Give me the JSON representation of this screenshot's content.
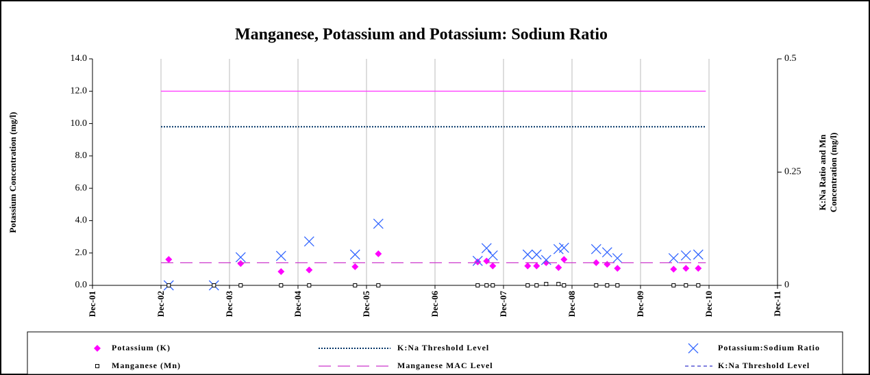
{
  "chart_data": {
    "type": "scatter",
    "title": "Manganese, Potassium and Potassium: Sodium Ratio",
    "y_label": "Potassium Concentration (mg/l)",
    "y2_label": "K:Na Ratio and Mn Concentration (mg/l)",
    "xlim": [
      2001.917,
      2011.917
    ],
    "xticks": [
      {
        "value": 2001.917,
        "label": "Dec-01"
      },
      {
        "value": 2002.917,
        "label": "Dec-02"
      },
      {
        "value": 2003.917,
        "label": "Dec-03"
      },
      {
        "value": 2004.917,
        "label": "Dec-04"
      },
      {
        "value": 2005.917,
        "label": "Dec-05"
      },
      {
        "value": 2006.917,
        "label": "Dec-06"
      },
      {
        "value": 2007.917,
        "label": "Dec-07"
      },
      {
        "value": 2008.917,
        "label": "Dec-08"
      },
      {
        "value": 2009.917,
        "label": "Dec-09"
      },
      {
        "value": 2010.917,
        "label": "Dec-10"
      },
      {
        "value": 2011.917,
        "label": "Dec-11"
      }
    ],
    "ylim": [
      0,
      14
    ],
    "yticks": [
      {
        "value": 0,
        "label": "0.0"
      },
      {
        "value": 2,
        "label": "2.0"
      },
      {
        "value": 4,
        "label": "4.0"
      },
      {
        "value": 6,
        "label": "6.0"
      },
      {
        "value": 8,
        "label": "8.0"
      },
      {
        "value": 10,
        "label": "10.0"
      },
      {
        "value": 12,
        "label": "12.0"
      },
      {
        "value": 14,
        "label": "14.0"
      }
    ],
    "y2lim": [
      0,
      0.5
    ],
    "y2ticks": [
      0,
      0.25,
      0.5
    ],
    "grid": "vertical",
    "legend": "bottom",
    "series": [
      {
        "name": "Potassium (K)",
        "kind": "marker",
        "marker": "diamond",
        "color": "#ff00ff",
        "axis": "y",
        "x": [
          2003.03,
          2003.69,
          2004.08,
          2004.67,
          2005.08,
          2005.75,
          2006.09,
          2007.54,
          2007.67,
          2007.76,
          2008.27,
          2008.4,
          2008.54,
          2008.72,
          2008.8,
          2009.27,
          2009.43,
          2009.58,
          2010.4,
          2010.58,
          2010.76
        ],
        "values": [
          1.6,
          null,
          1.35,
          0.85,
          0.95,
          1.15,
          1.95,
          1.45,
          1.5,
          1.2,
          1.2,
          1.2,
          1.4,
          1.1,
          1.6,
          1.4,
          1.3,
          1.05,
          1.0,
          1.05,
          1.05
        ]
      },
      {
        "name": "K:Na Threshold Level",
        "kind": "line",
        "dash": "dotted",
        "color": "#003366",
        "axis": "y2",
        "x": [
          2002.917,
          2010.87
        ],
        "values": [
          0.35,
          0.35
        ]
      },
      {
        "name": "Potassium:Sodium Ratio",
        "kind": "marker",
        "marker": "cross",
        "color": "#3366ff",
        "axis": "y2",
        "x": [
          2003.03,
          2003.69,
          2004.08,
          2004.67,
          2005.08,
          2005.75,
          2006.09,
          2007.54,
          2007.67,
          2007.76,
          2008.27,
          2008.4,
          2008.54,
          2008.72,
          2008.8,
          2009.27,
          2009.43,
          2009.58,
          2010.4,
          2010.58,
          2010.76
        ],
        "values": [
          0,
          0,
          0.062,
          0.065,
          0.097,
          0.068,
          0.136,
          0.054,
          0.082,
          0.066,
          0.068,
          0.068,
          0.056,
          0.08,
          0.083,
          0.08,
          0.073,
          0.06,
          0.06,
          0.066,
          0.068
        ]
      },
      {
        "name": "Manganese (Mn)",
        "kind": "marker",
        "marker": "square",
        "color": "#000000",
        "axis": "y2",
        "x": [
          2003.03,
          2003.69,
          2004.08,
          2004.67,
          2005.08,
          2005.75,
          2006.09,
          2007.54,
          2007.67,
          2007.76,
          2008.27,
          2008.4,
          2008.54,
          2008.72,
          2008.8,
          2009.27,
          2009.43,
          2009.58,
          2010.4,
          2010.58,
          2010.76
        ],
        "values": [
          0,
          0,
          0,
          0,
          0,
          0,
          0,
          0,
          0,
          0,
          0,
          0,
          0.003,
          0.003,
          0,
          0,
          0,
          0,
          0,
          0,
          0
        ]
      },
      {
        "name": "Manganese MAC Level",
        "kind": "line",
        "dash": "longdash",
        "color": "#cc33cc",
        "axis": "y2",
        "x": [
          2002.917,
          2010.87
        ],
        "values": [
          0.05,
          0.05
        ]
      },
      {
        "name": "K:Na Threshold Level",
        "kind": "line",
        "dash": "dashed",
        "color": "#3333cc",
        "axis": "y2",
        "x": [],
        "values": []
      },
      {
        "kind": "line",
        "dash": "solid",
        "color": "#ff33ff",
        "axis": "y",
        "x": [
          2002.917,
          2010.87
        ],
        "values": [
          12,
          12
        ]
      }
    ]
  }
}
